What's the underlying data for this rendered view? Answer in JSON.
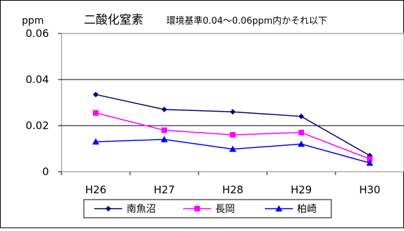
{
  "chart_data": {
    "type": "line",
    "title": "二酸化窒素",
    "subtitle": "環境基準0.04～0.06ppm内かそれ以下",
    "ylabel": "ppm",
    "xlabel": "",
    "categories": [
      "H26",
      "H27",
      "H28",
      "H29",
      "H30"
    ],
    "ylim": [
      0,
      0.06
    ],
    "yticks": [
      0,
      0.02,
      0.04,
      0.06
    ],
    "ytick_labels": [
      "0",
      "0.02",
      "0.04",
      "0.06"
    ],
    "grid": true,
    "legend_position": "bottom",
    "series": [
      {
        "name": "南魚沼",
        "color": "#000080",
        "marker": "diamond",
        "values": [
          0.0335,
          0.027,
          0.026,
          0.024,
          0.007
        ]
      },
      {
        "name": "長岡",
        "color": "#ff00ff",
        "marker": "square",
        "values": [
          0.0255,
          0.018,
          0.016,
          0.017,
          0.0055
        ]
      },
      {
        "name": "柏崎",
        "color": "#0000ff",
        "marker": "triangle",
        "values": [
          0.013,
          0.014,
          0.0098,
          0.012,
          0.0038
        ]
      }
    ]
  }
}
